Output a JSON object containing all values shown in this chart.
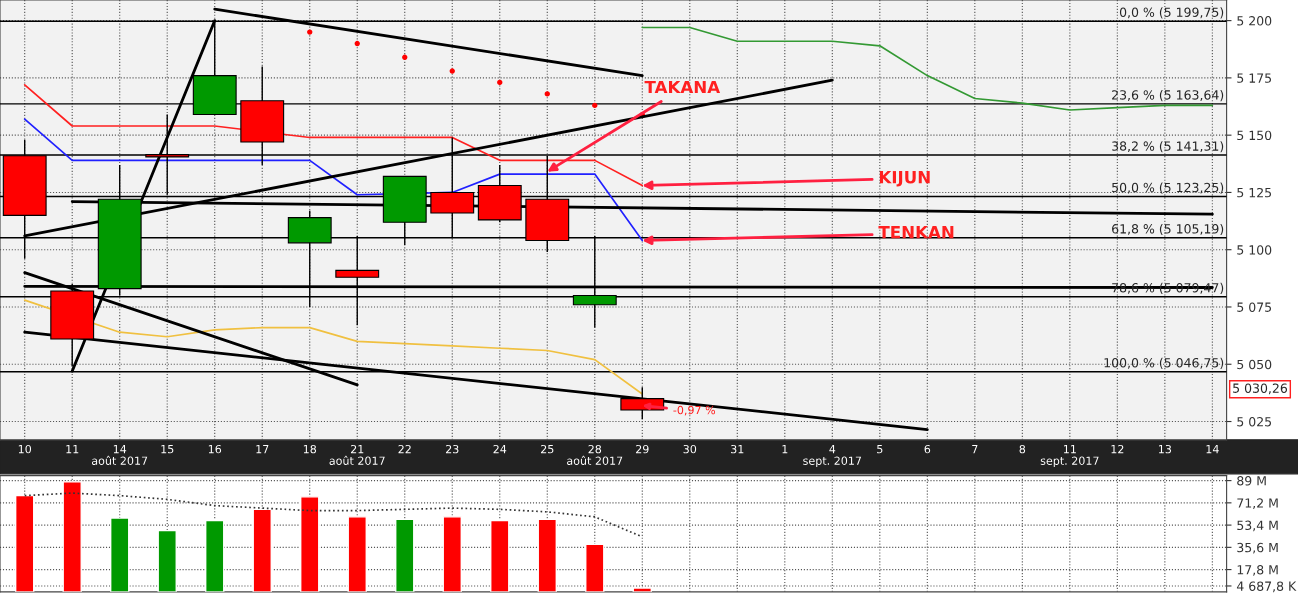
{
  "chart_data": [
    {
      "type": "candlestick",
      "categories": [
        "10",
        "11",
        "14\naoût 2017",
        "15",
        "16",
        "17",
        "18",
        "21\naoût 2017",
        "22",
        "23",
        "24",
        "25",
        "28\naoût 2017",
        "29",
        "30",
        "31",
        "1",
        "4\nsept. 2017",
        "5",
        "6",
        "7",
        "8",
        "11\nsept. 2017",
        "12",
        "13",
        "14"
      ],
      "ohlc": [
        [
          5141,
          5148,
          5096,
          5115
        ],
        [
          5082,
          5085,
          5049,
          5061
        ],
        [
          5083,
          5137,
          5080,
          5122
        ],
        [
          5141.5,
          5159,
          5124,
          5140.5
        ],
        [
          5159,
          5200,
          5159,
          5176
        ],
        [
          5165,
          5180,
          5137,
          5147
        ],
        [
          5103,
          5117,
          5075,
          5114
        ],
        [
          5091,
          5106,
          5067,
          5088
        ],
        [
          5112,
          5132,
          5102,
          5132
        ],
        [
          5125,
          5149,
          5105,
          5116
        ],
        [
          5128,
          5137,
          5112,
          5113
        ],
        [
          5122,
          5141,
          5099,
          5104
        ],
        [
          5076,
          5106,
          5066,
          5080
        ],
        [
          5035,
          5040,
          5026,
          5030
        ],
        null,
        null,
        null,
        null,
        null,
        null,
        null,
        null,
        null,
        null,
        null,
        null
      ],
      "colors": [
        "#ff0000",
        "#ff0000",
        "#009900",
        "#ff0000",
        "#009900",
        "#ff0000",
        "#009900",
        "#ff0000",
        "#009900",
        "#ff0000",
        "#ff0000",
        "#ff0000",
        "#009900",
        "#ff0000",
        null,
        null,
        null,
        null,
        null,
        null,
        null,
        null,
        null,
        null,
        null,
        null
      ],
      "ylim": [
        5017,
        5209
      ],
      "yticks": [
        {
          "value": 5025,
          "label": "5 025"
        },
        {
          "value": 5050,
          "label": "5 050"
        },
        {
          "value": 5075,
          "label": "5 075"
        },
        {
          "value": 5100,
          "label": "5 100"
        },
        {
          "value": 5125,
          "label": "5 125"
        },
        {
          "value": 5150,
          "label": "5 150"
        },
        {
          "value": 5175,
          "label": "5 175"
        },
        {
          "value": 5200,
          "label": "5 200"
        }
      ],
      "grid": true,
      "series": [
        {
          "type": "line",
          "color": "#2020ff",
          "values": [
            5157,
            5139,
            5139,
            5139,
            5139,
            5139,
            5139,
            5124,
            null,
            5125,
            5133,
            5133,
            5133,
            5104,
            null,
            null,
            null,
            null,
            null,
            null,
            null,
            null,
            null,
            null,
            null,
            null
          ]
        },
        {
          "type": "line",
          "color": "#ff2020",
          "values": [
            5172,
            5154,
            5154,
            5154,
            5154,
            null,
            5149,
            5149,
            5149,
            5149,
            5139,
            5139,
            5139,
            5128,
            null,
            null,
            null,
            null,
            null,
            null,
            null,
            null,
            null,
            null,
            null,
            null
          ]
        },
        {
          "type": "line",
          "color": "#f0c040",
          "values": [
            5078,
            null,
            5064,
            5062,
            5065,
            5066,
            5066,
            5060,
            5059,
            5058,
            5057,
            5056,
            5052,
            5037,
            null,
            null,
            null,
            null,
            null,
            null,
            null,
            null,
            null,
            null,
            null,
            null
          ]
        },
        {
          "type": "scatter",
          "color": "#ff0000",
          "values": [
            null,
            null,
            null,
            null,
            null,
            null,
            5195,
            5190,
            5184,
            5178,
            5173,
            5168,
            5163,
            5159,
            null,
            null,
            null,
            null,
            null,
            null,
            null,
            null,
            null,
            null,
            null,
            null
          ]
        },
        {
          "type": "line",
          "color": "#339933",
          "values": [
            null,
            null,
            null,
            null,
            null,
            null,
            null,
            null,
            null,
            null,
            null,
            null,
            null,
            5197,
            5197,
            5191,
            5191,
            5191,
            5189,
            5176,
            5166,
            5164,
            5161,
            5162,
            5163,
            5163
          ]
        },
        {
          "type": "line",
          "color": "#000000",
          "values": [
            null,
            5047,
            null,
            null,
            5200,
            null,
            null,
            null,
            null,
            null,
            null,
            null,
            null,
            null,
            null,
            null,
            null,
            null,
            null,
            null,
            null,
            null,
            null,
            null,
            null,
            null
          ]
        },
        {
          "type": "line",
          "color": "#000000",
          "values": [
            5106,
            null,
            null,
            null,
            null,
            null,
            null,
            null,
            null,
            null,
            null,
            null,
            null,
            null,
            null,
            null,
            null,
            5174,
            null,
            null,
            null,
            null,
            null,
            null,
            null,
            null
          ]
        },
        {
          "type": "line",
          "color": "#000000",
          "values": [
            null,
            null,
            null,
            null,
            5205,
            null,
            null,
            null,
            null,
            null,
            null,
            null,
            null,
            5176,
            null,
            null,
            null,
            null,
            null,
            null,
            null,
            null,
            null,
            null,
            null,
            null
          ]
        },
        {
          "type": "line",
          "color": "#000000",
          "values": [
            null,
            5121,
            null,
            null,
            null,
            null,
            null,
            null,
            null,
            null,
            null,
            null,
            null,
            null,
            null,
            null,
            null,
            null,
            null,
            null,
            null,
            null,
            null,
            null,
            null,
            5115.5
          ]
        },
        {
          "type": "line",
          "color": "#000000",
          "values": [
            5084,
            null,
            null,
            null,
            null,
            null,
            null,
            null,
            null,
            null,
            null,
            null,
            null,
            null,
            null,
            null,
            null,
            null,
            null,
            null,
            null,
            null,
            null,
            null,
            null,
            5083.5
          ]
        },
        {
          "type": "line",
          "color": "#000000",
          "values": [
            5064,
            null,
            null,
            null,
            null,
            null,
            null,
            null,
            null,
            null,
            null,
            null,
            null,
            null,
            null,
            null,
            null,
            null,
            null,
            5021.5,
            null,
            null,
            null,
            null,
            null,
            null
          ]
        },
        {
          "type": "line",
          "color": "#000000",
          "values": [
            5090,
            null,
            null,
            null,
            null,
            null,
            null,
            5041,
            null,
            null,
            null,
            null,
            null,
            null,
            null,
            null,
            null,
            null,
            null,
            null,
            null,
            null,
            null,
            null,
            null,
            null
          ]
        }
      ],
      "ref_lines": [
        {
          "axis": "y",
          "value": 5199.75,
          "label": "0,0 % (5 199,75)"
        },
        {
          "axis": "y",
          "value": 5163.64,
          "label": "23,6 % (5 163,64)"
        },
        {
          "axis": "y",
          "value": 5141.31,
          "label": "38,2 % (5 141,31)"
        },
        {
          "axis": "y",
          "value": 5123.25,
          "label": "50,0 % (5 123,25)"
        },
        {
          "axis": "y",
          "value": 5105.19,
          "label": "61,8 % (5 105,19)"
        },
        {
          "axis": "y",
          "value": 5079.47,
          "label": "78,6 % (5 079,47)"
        },
        {
          "axis": "y",
          "value": 5046.75,
          "label": "100,0 % (5 046,75)"
        }
      ],
      "annotations": [
        {
          "text": "TAKANA",
          "x": "25",
          "y": 5134
        },
        {
          "text": "KIJUN",
          "x": "29",
          "y": 5128
        },
        {
          "text": "TENKAN",
          "x": "29",
          "y": 5104
        },
        {
          "text": "-0,97 %",
          "x": "29",
          "y": 5032
        },
        "5 030,26"
      ]
    },
    {
      "type": "bar",
      "categories": [
        null,
        null,
        null,
        null,
        null,
        null,
        null,
        null,
        null,
        null,
        null,
        null,
        null,
        null,
        null,
        null,
        null,
        null,
        null,
        null,
        null,
        null,
        null,
        null,
        null,
        null
      ],
      "tick_labels": "y",
      "ylim": [
        0,
        93
      ],
      "yticks": [
        {
          "value": 4.6878,
          "label": "4 687,8 K"
        },
        {
          "value": 17.8,
          "label": "17,8 M"
        },
        {
          "value": 35.6,
          "label": "35,6 M"
        },
        {
          "value": 53.4,
          "label": "53,4 M"
        },
        {
          "value": 71.2,
          "label": "71,2 M"
        },
        {
          "value": 89,
          "label": "89 M"
        }
      ],
      "grid": true,
      "series": [
        {
          "type": "bar",
          "values": [
            77,
            88,
            59,
            49,
            57,
            66,
            76,
            60,
            58,
            60,
            57,
            58,
            38,
            3,
            null,
            null,
            null,
            null,
            null,
            null,
            null,
            null,
            null,
            null,
            null,
            null
          ],
          "colors": [
            "#ff0000",
            "#ff0000",
            "#009900",
            "#009900",
            "#009900",
            "#ff0000",
            "#ff0000",
            "#ff0000",
            "#009900",
            "#ff0000",
            "#ff0000",
            "#ff0000",
            "#ff0000",
            "#ff0000",
            null,
            null,
            null,
            null,
            null,
            null,
            null,
            null,
            null,
            null,
            null,
            null
          ]
        },
        {
          "type": "line",
          "color": "#333333",
          "line_style": "dotted",
          "values": [
            77,
            79,
            77,
            74,
            69,
            67,
            65,
            65,
            66,
            67,
            66,
            64,
            60,
            44,
            null,
            null,
            null,
            null,
            null,
            null,
            null,
            null,
            null,
            null,
            null,
            null
          ]
        }
      ]
    }
  ]
}
